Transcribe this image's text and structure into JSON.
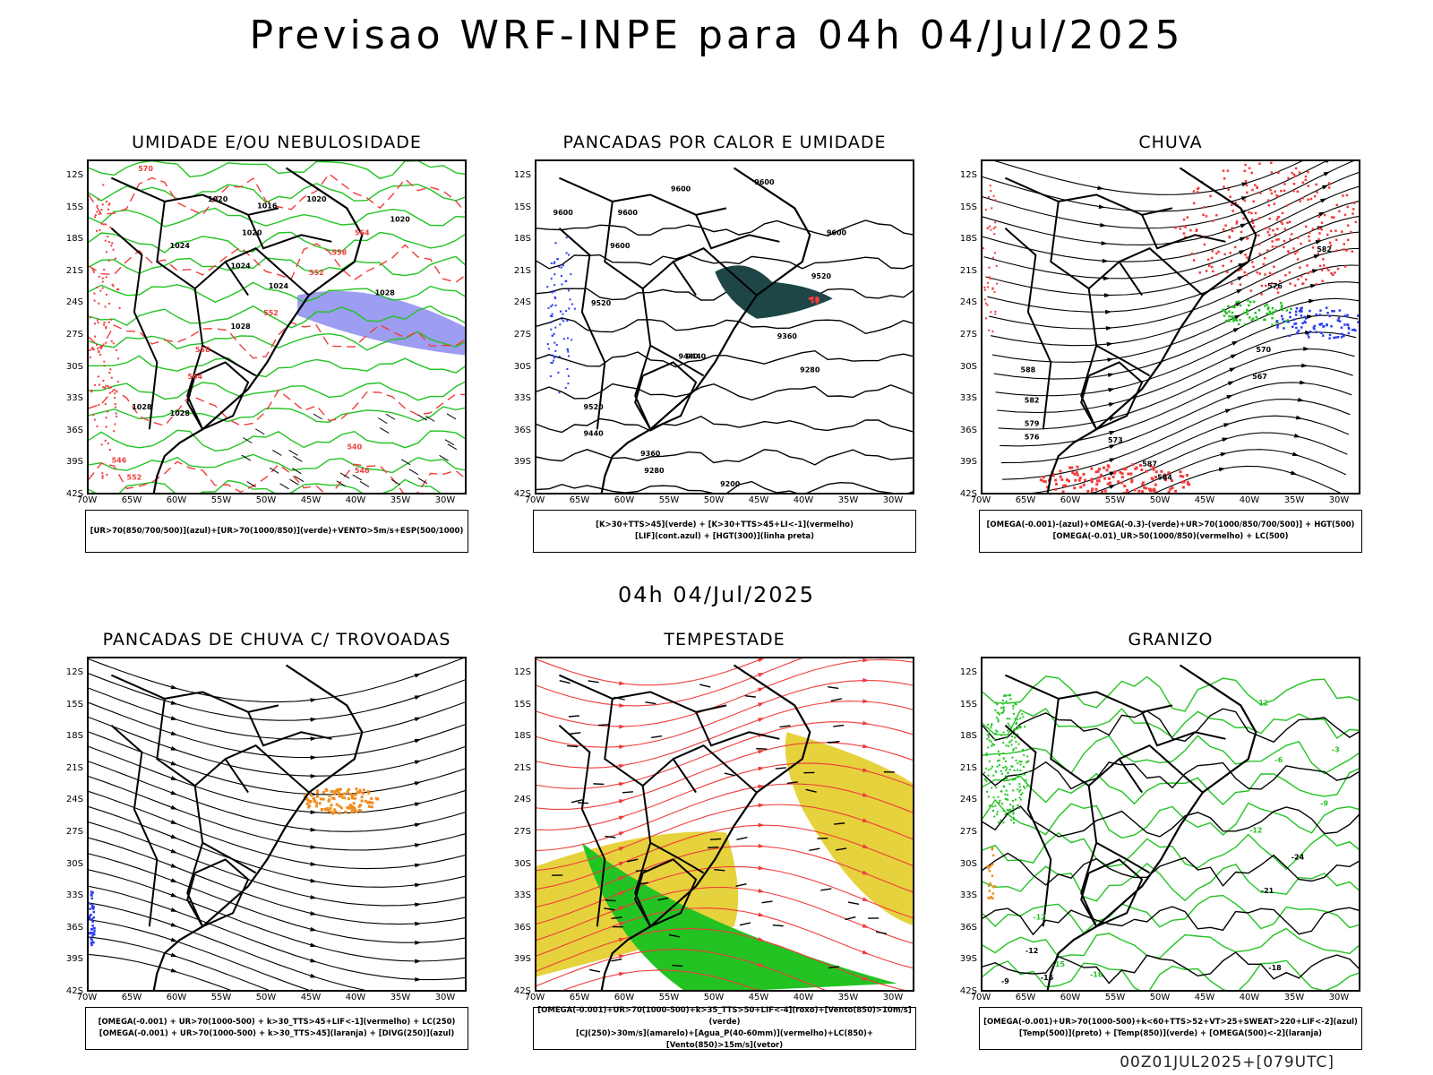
{
  "main_title": "Previsao WRF-INPE  para 04h 04/Jul/2025",
  "mid_date": "04h 04/Jul/2025",
  "footer_id": "00Z01JUL2025+[079UTC]",
  "lat_labels": [
    "12S",
    "15S",
    "18S",
    "21S",
    "24S",
    "27S",
    "30S",
    "33S",
    "36S",
    "39S",
    "42S"
  ],
  "lon_labels": [
    "70W",
    "65W",
    "60W",
    "55W",
    "50W",
    "45W",
    "40W",
    "35W",
    "30W"
  ],
  "panels": [
    {
      "title": "UMIDADE E/OU NEBULOSIDADE",
      "legend": [
        "[UR>70(850/700/500)](azul)+[UR>70(1000/850)](verde)+VENTO>5m/s+ESP(500/1000)"
      ],
      "contour_labels": [
        "570",
        "1020",
        "1020",
        "1020",
        "1016",
        "1024",
        "1020",
        "564",
        "558",
        "552",
        "1024",
        "1024",
        "1028",
        "552",
        "1028",
        "558",
        "564",
        "1028",
        "546",
        "1028",
        "546",
        "552",
        "540"
      ]
    },
    {
      "title": "PANCADAS POR CALOR E UMIDADE",
      "legend": [
        "[K>30+TTS>45](verde) + [K>30+TTS>45+LI<-1](vermelho)",
        "[LIF](cont.azul) + [HGT(300)](linha preta)"
      ],
      "contour_labels": [
        "9600",
        "9600",
        "9600",
        "9600",
        "9600",
        "9520",
        "9600",
        "9440",
        "9360",
        "9440",
        "9520",
        "9280",
        "9440",
        "9360",
        "9280",
        "9200",
        "9520"
      ]
    },
    {
      "title": "CHUVA",
      "legend": [
        "[OMEGA(-0.001)-(azul)+OMEGA(-0.3)-(verde)+UR>70(1000/850/700/500)] + HGT(500)",
        "[OMEGA(-0.01)_UR>50(1000/850)(vermelho) + LC(500)"
      ],
      "contour_labels": [
        "582",
        "576",
        "570",
        "588",
        "582",
        "579",
        "576",
        "573",
        "587",
        "584",
        "567"
      ]
    },
    {
      "title": "PANCADAS DE CHUVA C/ TROVOADAS",
      "legend": [
        "[OMEGA(-0.001) + UR>70(1000-500) + k>30_TTS>45+LIF<-1](vermelho) + LC(250)",
        "[OMEGA(-0.001) + UR>70(1000-500) + k>30_TTS>45](laranja) + [DIVG(250)](azul)"
      ],
      "contour_labels": []
    },
    {
      "title": "TEMPESTADE",
      "legend": [
        "[OMEGA(-0.001)+UR>70(1000-500)+k>35_TTS>50+LIF<-4](roxo)+[Vento(850)>10m/s](verde)",
        "[CJ(250)>30m/s](amarelo)+[Agua_P(40-60mm)](vermelho)+LC(850)+[Vento(850)>15m/s](vetor)"
      ],
      "contour_labels": []
    },
    {
      "title": "GRANIZO",
      "legend": [
        "[OMEGA(-0.001)+UR>70(1000-500)+k<60+TTS>52+VT>25+SWEAT>220+LIF<-2](azul)",
        "[Temp(500)](preto) + [Temp(850)](verde) + [OMEGA(500)<-2](laranja)"
      ],
      "contour_labels": [
        "-9",
        "-12",
        "-15",
        "-18",
        "-21",
        "-24",
        "12",
        "-12",
        "-15",
        "-18",
        "-3",
        "-6",
        "-9",
        "-12"
      ]
    }
  ],
  "colors": {
    "blue": "#2b3cf0",
    "light_blue": "#8c8cf0",
    "green": "#22c322",
    "red": "#f03c3c",
    "orange": "#f08c1e",
    "yellow": "#e6d23c",
    "dark_teal": "#1e4646",
    "black": "#000000"
  }
}
